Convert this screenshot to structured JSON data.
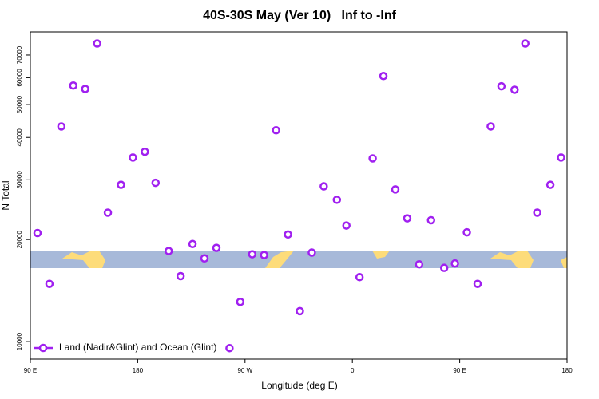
{
  "chart_data": {
    "type": "scatter",
    "title": "40S-30S May (Ver 10)   Inf to -Inf",
    "x_label": "Longitude (deg E)",
    "y_label": "N Total",
    "y_log": true,
    "legend_position": "bottom-left",
    "series": [
      {
        "name": "Land (Nadir&Glint) and Ocean (Glint)",
        "color": "#a020f0",
        "x": [
          96,
          106,
          116,
          126,
          136,
          146,
          155,
          166,
          176,
          186,
          195,
          206,
          216,
          226,
          236,
          246,
          257,
          266,
          276,
          286,
          296,
          306,
          316,
          326,
          336,
          347,
          355,
          366,
          377,
          386,
          396,
          406,
          416,
          426,
          437,
          446,
          456,
          465,
          476,
          485,
          496,
          505,
          515,
          526,
          535
        ],
        "values": [
          20900,
          14800,
          43100,
          56900,
          55600,
          75700,
          24000,
          29000,
          34900,
          36300,
          29400,
          18500,
          15600,
          19400,
          17600,
          18900,
          9570,
          13100,
          18100,
          18000,
          42000,
          20700,
          12300,
          18300,
          28700,
          26200,
          22000,
          15500,
          34700,
          60700,
          28100,
          23100,
          16900,
          22800,
          16500,
          17000,
          21000,
          14800,
          43100,
          56600,
          55300,
          75700,
          24000,
          29000,
          34900
        ]
      }
    ],
    "xlim": [
      90,
      540
    ],
    "xticks": [
      {
        "value": 90,
        "label": "90 E"
      },
      180,
      {
        "value": 270,
        "label": "90 W"
      },
      {
        "value": 360,
        "label": "0"
      },
      {
        "value": 450,
        "label": "90 E"
      },
      {
        "value": 540,
        "label": "180"
      }
    ],
    "ylim": [
      8880,
      81900
    ],
    "yticks": [
      10000,
      20000,
      30000,
      40000,
      50000,
      60000,
      70000
    ]
  }
}
